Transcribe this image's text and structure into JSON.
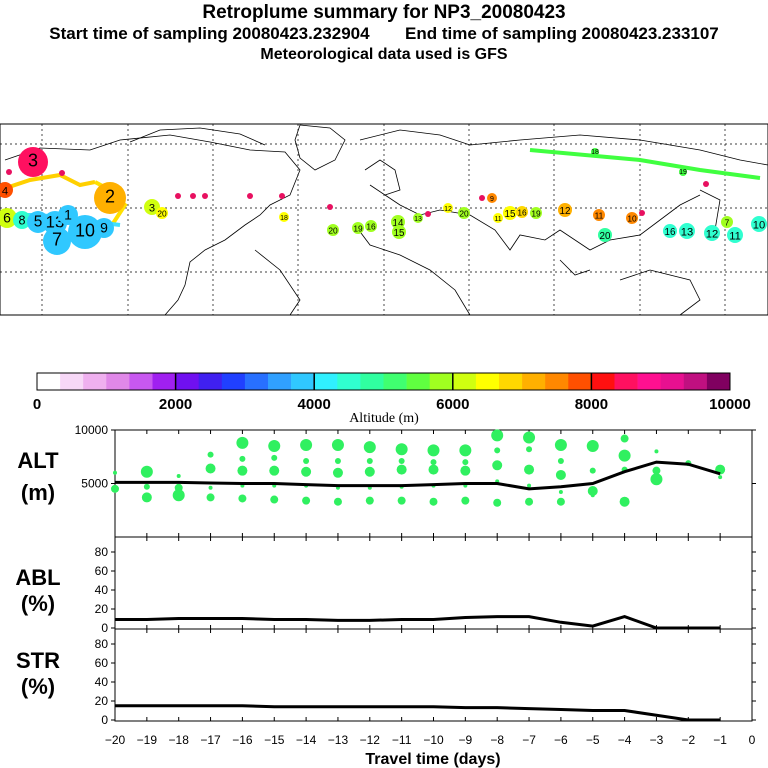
{
  "header": {
    "title": "Retroplume summary for NP3_20080423",
    "start_label": "Start time of sampling 20080423.232904",
    "end_label": "End time of sampling 20080423.233107",
    "met_label": "Meteorological data used is GFS"
  },
  "colorbar": {
    "ticks": [
      "0",
      "2000",
      "4000",
      "6000",
      "8000",
      "10000"
    ],
    "label": "Altitude (m)",
    "colors": [
      "#ffffff",
      "#f7d8f7",
      "#efb0ef",
      "#e088e8",
      "#c858f0",
      "#a020f0",
      "#7010f0",
      "#4020f0",
      "#2040ff",
      "#2870ff",
      "#30a0ff",
      "#30c8ff",
      "#30f0ff",
      "#30ffd0",
      "#30ffa0",
      "#40ff70",
      "#60ff40",
      "#a0ff20",
      "#d0ff10",
      "#ffff00",
      "#ffd800",
      "#ffb000",
      "#ff8800",
      "#ff5000",
      "#ff1010",
      "#ff1060",
      "#ff1090",
      "#e81090",
      "#c01080",
      "#800060"
    ]
  },
  "map": {
    "plume_labels": [
      "3",
      "4",
      "6",
      "8",
      "5",
      "13",
      "1",
      "7",
      "10",
      "2",
      "9",
      "3",
      "20",
      "18",
      "20",
      "19",
      "16",
      "14",
      "15",
      "13",
      "12",
      "20",
      "11",
      "9",
      "15",
      "16",
      "19",
      "12",
      "11",
      "10",
      "20",
      "16",
      "13",
      "12",
      "11",
      "7",
      "10",
      "18",
      "19"
    ]
  },
  "panels": {
    "alt": {
      "label_top": "ALT",
      "label_bottom": "(m)",
      "yticks": [
        "10000",
        "5000"
      ]
    },
    "abl": {
      "label_top": "ABL",
      "label_bottom": "(%)",
      "yticks": [
        "80",
        "60",
        "40",
        "20",
        "0"
      ]
    },
    "str": {
      "label_top": "STR",
      "label_bottom": "(%)",
      "yticks": [
        "80",
        "60",
        "40",
        "20",
        "0"
      ]
    }
  },
  "xaxis": {
    "label": "Travel time (days)",
    "ticks": [
      "−20",
      "−19",
      "−18",
      "−17",
      "−16",
      "−15",
      "−14",
      "−13",
      "−12",
      "−11",
      "−10",
      "−9",
      "−8",
      "−7",
      "−6",
      "−5",
      "−4",
      "−3",
      "−2",
      "−1",
      "0"
    ]
  },
  "chart_data": [
    {
      "type": "line",
      "title": "ALT",
      "ylabel": "Altitude (m)",
      "xlabel": "Travel time (days)",
      "ylim": [
        0,
        10000
      ],
      "x": [
        -20,
        -19,
        -18,
        -17,
        -16,
        -15,
        -14,
        -13,
        -12,
        -11,
        -10,
        -9,
        -8,
        -7,
        -6,
        -5,
        -4,
        -3,
        -2,
        -1
      ],
      "values": [
        5100,
        5100,
        5100,
        5050,
        5000,
        5000,
        4900,
        4800,
        4800,
        4800,
        4900,
        5000,
        5000,
        4500,
        4700,
        5000,
        6100,
        7000,
        6800,
        5900
      ],
      "scatter": [
        [
          -20,
          6000
        ],
        [
          -20,
          4500
        ],
        [
          -19,
          6100
        ],
        [
          -19,
          4700
        ],
        [
          -19,
          3700
        ],
        [
          -18,
          5700
        ],
        [
          -18,
          4600
        ],
        [
          -18,
          3900
        ],
        [
          -17,
          7700
        ],
        [
          -17,
          6400
        ],
        [
          -17,
          4600
        ],
        [
          -17,
          3700
        ],
        [
          -16,
          8800
        ],
        [
          -16,
          7300
        ],
        [
          -16,
          6200
        ],
        [
          -16,
          4800
        ],
        [
          -16,
          3600
        ],
        [
          -15,
          8500
        ],
        [
          -15,
          7400
        ],
        [
          -15,
          6200
        ],
        [
          -15,
          4800
        ],
        [
          -15,
          3500
        ],
        [
          -14,
          8600
        ],
        [
          -14,
          7100
        ],
        [
          -14,
          6100
        ],
        [
          -14,
          4800
        ],
        [
          -14,
          3400
        ],
        [
          -13,
          8600
        ],
        [
          -13,
          7100
        ],
        [
          -13,
          6000
        ],
        [
          -13,
          4600
        ],
        [
          -13,
          3300
        ],
        [
          -12,
          8400
        ],
        [
          -12,
          7100
        ],
        [
          -12,
          6100
        ],
        [
          -12,
          4600
        ],
        [
          -12,
          3400
        ],
        [
          -11,
          8200
        ],
        [
          -11,
          7100
        ],
        [
          -11,
          6300
        ],
        [
          -11,
          4700
        ],
        [
          -11,
          3400
        ],
        [
          -10,
          8100
        ],
        [
          -10,
          7000
        ],
        [
          -10,
          6300
        ],
        [
          -10,
          4800
        ],
        [
          -10,
          3300
        ],
        [
          -9,
          8100
        ],
        [
          -9,
          7000
        ],
        [
          -9,
          6200
        ],
        [
          -9,
          4800
        ],
        [
          -9,
          3400
        ],
        [
          -8,
          9500
        ],
        [
          -8,
          8100
        ],
        [
          -8,
          6700
        ],
        [
          -8,
          5200
        ],
        [
          -8,
          3200
        ],
        [
          -7,
          9300
        ],
        [
          -7,
          8200
        ],
        [
          -7,
          6300
        ],
        [
          -7,
          4800
        ],
        [
          -7,
          3300
        ],
        [
          -6,
          8600
        ],
        [
          -6,
          7100
        ],
        [
          -6,
          5800
        ],
        [
          -6,
          4200
        ],
        [
          -6,
          3300
        ],
        [
          -5,
          8500
        ],
        [
          -5,
          6200
        ],
        [
          -5,
          4300
        ],
        [
          -5,
          3900
        ],
        [
          -4,
          9200
        ],
        [
          -4,
          7600
        ],
        [
          -4,
          6300
        ],
        [
          -4,
          3300
        ],
        [
          -3,
          8000
        ],
        [
          -3,
          6200
        ],
        [
          -3,
          5400
        ],
        [
          -2,
          6900
        ],
        [
          -1,
          6300
        ],
        [
          -1,
          5600
        ]
      ]
    },
    {
      "type": "line",
      "title": "ABL",
      "ylabel": "(%)",
      "xlabel": "Travel time (days)",
      "ylim": [
        0,
        100
      ],
      "x": [
        -20,
        -19,
        -18,
        -17,
        -16,
        -15,
        -14,
        -13,
        -12,
        -11,
        -10,
        -9,
        -8,
        -7,
        -6,
        -5,
        -4,
        -3,
        -2,
        -1
      ],
      "values": [
        9,
        9,
        10,
        10,
        10,
        9,
        9,
        8,
        8,
        9,
        9,
        11,
        12,
        12,
        6,
        2,
        12,
        0,
        0,
        0
      ]
    },
    {
      "type": "line",
      "title": "STR",
      "ylabel": "(%)",
      "xlabel": "Travel time (days)",
      "ylim": [
        0,
        100
      ],
      "x": [
        -20,
        -19,
        -18,
        -17,
        -16,
        -15,
        -14,
        -13,
        -12,
        -11,
        -10,
        -9,
        -8,
        -7,
        -6,
        -5,
        -4,
        -3,
        -2,
        -1
      ],
      "values": [
        15,
        15,
        15,
        15,
        15,
        14,
        14,
        14,
        14,
        14,
        14,
        13,
        13,
        12,
        11,
        10,
        10,
        5,
        0,
        0
      ]
    }
  ]
}
